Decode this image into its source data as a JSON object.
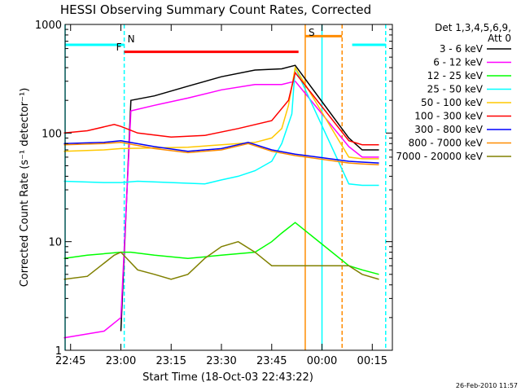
{
  "chart_data": {
    "type": "line",
    "title": "HESSI Observing Summary Count Rates, Corrected",
    "xlabel": "Start Time (18-Oct-03 22:43:22)",
    "ylabel": "Corrected Count Rate (s⁻¹ detector⁻¹)",
    "y_scale": "log",
    "ylim": [
      1,
      1000
    ],
    "xlim": [
      "22:43:22",
      "00:21:00"
    ],
    "x_ticks": [
      "22:45",
      "23:00",
      "23:15",
      "23:30",
      "23:45",
      "00:00",
      "00:15"
    ],
    "y_ticks": [
      "1",
      "10",
      "100",
      "1000"
    ],
    "legend_header": [
      "Det 1,3,4,5,6,9,",
      "Att 0"
    ],
    "timestamp": "26-Feb-2010 11:57",
    "series": [
      {
        "name": "3 - 6 keV",
        "color": "#000000",
        "x": [
          "23:00",
          "23:03",
          "23:10",
          "23:20",
          "23:30",
          "23:40",
          "23:48",
          "23:52",
          "00:08",
          "00:12",
          "00:17"
        ],
        "values": [
          1.5,
          200,
          220,
          270,
          330,
          380,
          390,
          420,
          90,
          70,
          70
        ]
      },
      {
        "name": "6 - 12 keV",
        "color": "#ff00ff",
        "x": [
          "22:43",
          "22:55",
          "23:00",
          "23:03",
          "23:10",
          "23:20",
          "23:30",
          "23:40",
          "23:48",
          "23:52",
          "00:08",
          "00:12",
          "00:17"
        ],
        "values": [
          1.3,
          1.5,
          2.0,
          160,
          180,
          210,
          250,
          280,
          280,
          300,
          75,
          60,
          60
        ]
      },
      {
        "name": "12 - 25 keV",
        "color": "#00ff00",
        "x": [
          "22:43",
          "22:50",
          "23:00",
          "23:03",
          "23:10",
          "23:20",
          "23:30",
          "23:40",
          "23:45",
          "23:48",
          "23:52",
          "00:08",
          "00:12",
          "00:17"
        ],
        "values": [
          7,
          7.5,
          8,
          8,
          7.5,
          7,
          7.5,
          8,
          10,
          12,
          15,
          6,
          5.5,
          5
        ]
      },
      {
        "name": "25 - 50 keV",
        "color": "#00ffff",
        "x": [
          "22:43",
          "22:55",
          "23:00",
          "23:05",
          "23:15",
          "23:25",
          "23:30",
          "23:35",
          "23:40",
          "23:45",
          "23:48",
          "23:51",
          "23:52",
          "00:08",
          "00:12",
          "00:17"
        ],
        "values": [
          36,
          35,
          35,
          36,
          35,
          34,
          37,
          40,
          45,
          55,
          80,
          150,
          400,
          34,
          33,
          33
        ]
      },
      {
        "name": "50 - 100 keV",
        "color": "#ffc800",
        "x": [
          "22:43",
          "22:55",
          "23:00",
          "23:10",
          "23:20",
          "23:30",
          "23:40",
          "23:45",
          "23:48",
          "23:50",
          "23:52",
          "00:08",
          "00:12",
          "00:17"
        ],
        "values": [
          68,
          70,
          72,
          73,
          74,
          78,
          82,
          90,
          110,
          180,
          400,
          60,
          58,
          58
        ]
      },
      {
        "name": "100 - 300 keV",
        "color": "#ff0000",
        "x": [
          "22:43",
          "22:50",
          "22:58",
          "23:00",
          "23:05",
          "23:15",
          "23:25",
          "23:35",
          "23:45",
          "23:50",
          "23:52",
          "00:08",
          "00:12",
          "00:17"
        ],
        "values": [
          100,
          105,
          120,
          115,
          100,
          92,
          95,
          110,
          130,
          200,
          360,
          85,
          78,
          78
        ]
      },
      {
        "name": "300 - 800 keV",
        "color": "#0000ff",
        "x": [
          "22:43",
          "22:55",
          "23:00",
          "23:10",
          "23:20",
          "23:30",
          "23:38",
          "23:45",
          "23:52",
          "00:08",
          "00:12",
          "00:17"
        ],
        "values": [
          80,
          82,
          85,
          75,
          68,
          72,
          82,
          70,
          64,
          55,
          54,
          53
        ]
      },
      {
        "name": "800 - 7000 keV",
        "color": "#ff8c00",
        "x": [
          "22:43",
          "22:55",
          "23:00",
          "23:10",
          "23:20",
          "23:30",
          "23:38",
          "23:45",
          "23:52",
          "00:08",
          "00:12",
          "00:17"
        ],
        "values": [
          78,
          80,
          82,
          72,
          66,
          70,
          80,
          68,
          62,
          53,
          52,
          51
        ]
      },
      {
        "name": "7000 - 20000 keV",
        "color": "#808000",
        "x": [
          "22:43",
          "22:50",
          "22:58",
          "23:00",
          "23:05",
          "23:10",
          "23:15",
          "23:20",
          "23:25",
          "23:30",
          "23:35",
          "23:40",
          "23:45",
          "23:48",
          "00:08",
          "00:12",
          "00:17"
        ],
        "values": [
          4.5,
          4.8,
          7.5,
          8,
          5.5,
          5,
          4.5,
          5,
          7,
          9,
          10,
          8,
          6,
          6,
          6,
          5,
          4.5
        ]
      }
    ],
    "markers": [
      {
        "label": "N",
        "color": "#00ffff",
        "time": "23:01"
      },
      {
        "label": "F",
        "color": "#ff0000",
        "time": "23:01"
      },
      {
        "label": "S",
        "color": "#ff8c00",
        "time": "23:55"
      }
    ],
    "bars": [
      {
        "color": "#00ffff",
        "from": "22:43:22",
        "to": "23:01",
        "level": 650
      },
      {
        "color": "#ff0000",
        "from": "23:01",
        "to": "23:53",
        "level": 560
      },
      {
        "color": "#ff8c00",
        "from": "23:55",
        "to": "00:06",
        "level": 780
      },
      {
        "color": "#00ffff",
        "from": "00:09",
        "to": "00:19",
        "level": 650
      }
    ],
    "vlines": [
      {
        "color": "#00ffff",
        "style": "dashed",
        "time": "23:01"
      },
      {
        "color": "#00ffff",
        "style": "solid",
        "time": "22:43:22"
      },
      {
        "color": "#ff8c00",
        "style": "solid",
        "time": "23:55"
      },
      {
        "color": "#00ffff",
        "style": "solid",
        "time": "00:00"
      },
      {
        "color": "#ff8c00",
        "style": "dashed",
        "time": "00:06"
      },
      {
        "color": "#00ffff",
        "style": "dashed",
        "time": "00:19"
      }
    ]
  }
}
